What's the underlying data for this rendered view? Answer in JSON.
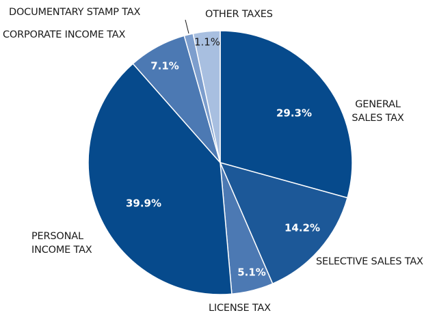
{
  "chart_data": {
    "type": "pie",
    "categories": [
      "GENERAL SALES TAX",
      "SELECTIVE SALES TAX",
      "LICENSE TAX",
      "PERSONAL INCOME TAX",
      "CORPORATE INCOME TAX",
      "DOCUMENTARY STAMP TAX",
      "OTHER TAXES"
    ],
    "values": [
      29.3,
      14.2,
      5.1,
      39.9,
      7.1,
      1.1,
      3.3
    ],
    "value_labels": [
      "29.3%",
      "14.2%",
      "5.1%",
      "39.9%",
      "7.1%",
      "1.1%",
      "3.3%"
    ],
    "colors": [
      "#064a8c",
      "#1c5898",
      "#4c79b3",
      "#064a8c",
      "#4c79b3",
      "#7d9ecd",
      "#a8bfe0"
    ]
  }
}
